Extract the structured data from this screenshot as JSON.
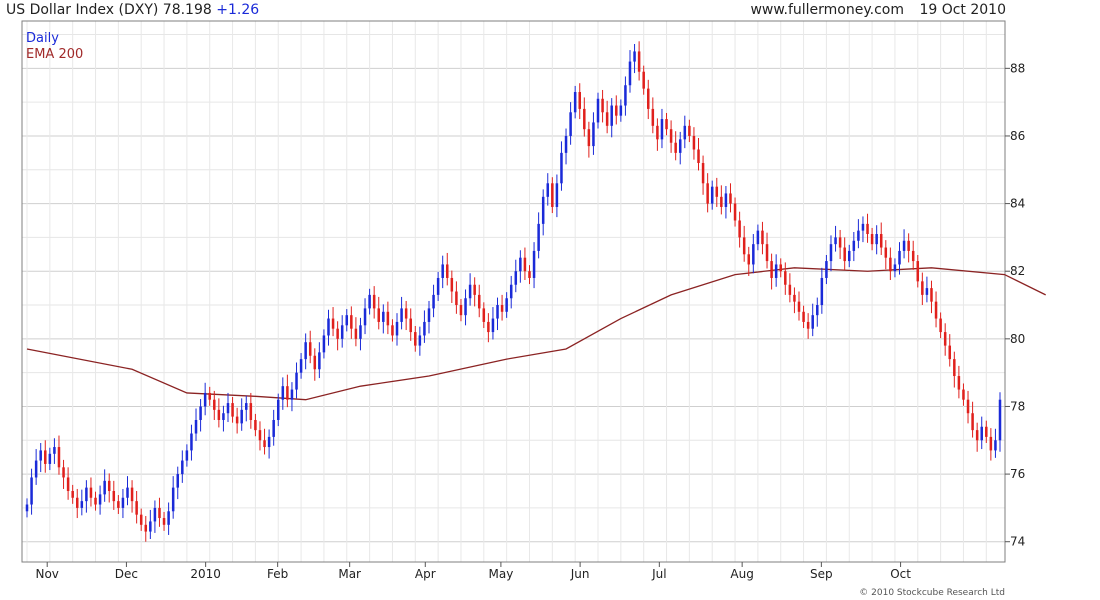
{
  "header": {
    "title": "US Dollar Index (DXY) 78.198",
    "change": "+1.26",
    "site": "www.fullermoney.com",
    "date": "19 Oct 2010"
  },
  "copyright": "© 2010 Stockcube Research Ltd",
  "colors": {
    "up": "#1a2ad8",
    "down": "#e0201c",
    "ema": "#8b2323",
    "grid": "#d8d8d8",
    "frame": "#7f7f7f"
  },
  "chart_data": {
    "type": "candlestick",
    "x_ticks": [
      "Nov",
      "Dec",
      "2010",
      "Feb",
      "Mar",
      "Apr",
      "May",
      "Jun",
      "Jul",
      "Aug",
      "Sep",
      "Oct"
    ],
    "y_ticks": [
      74,
      76,
      78,
      80,
      82,
      84,
      86,
      88
    ],
    "ylim": [
      73.4,
      89.4
    ],
    "legend_position": "top-left",
    "grid": true,
    "series": [
      {
        "name": "Daily",
        "style": "candles",
        "values": [
          75.1,
          75.9,
          76.4,
          76.7,
          76.3,
          76.6,
          76.8,
          76.2,
          75.9,
          75.5,
          75.3,
          75.0,
          75.2,
          75.6,
          75.3,
          75.1,
          75.4,
          75.8,
          75.5,
          75.2,
          75.0,
          75.3,
          75.6,
          75.2,
          74.8,
          74.5,
          74.3,
          74.6,
          75.0,
          74.7,
          74.5,
          74.9,
          75.6,
          76.0,
          76.4,
          76.7,
          77.2,
          77.6,
          78.0,
          78.4,
          78.2,
          77.9,
          77.6,
          77.8,
          78.1,
          77.7,
          77.5,
          77.9,
          78.1,
          77.6,
          77.3,
          77.0,
          76.8,
          77.1,
          77.6,
          78.2,
          78.6,
          78.2,
          78.5,
          79.0,
          79.4,
          79.9,
          79.5,
          79.1,
          79.6,
          80.1,
          80.6,
          80.3,
          80.0,
          80.4,
          80.7,
          80.3,
          80.0,
          80.4,
          80.9,
          81.3,
          80.9,
          80.5,
          80.8,
          80.4,
          80.1,
          80.5,
          80.9,
          80.6,
          80.2,
          79.8,
          80.1,
          80.5,
          80.9,
          81.3,
          81.8,
          82.2,
          81.8,
          81.4,
          81.0,
          80.7,
          81.2,
          81.6,
          81.3,
          80.9,
          80.5,
          80.2,
          80.6,
          81.0,
          80.8,
          81.2,
          81.6,
          82.0,
          82.4,
          82.0,
          81.8,
          82.6,
          83.4,
          84.2,
          84.6,
          83.9,
          84.6,
          85.5,
          86.0,
          86.7,
          87.3,
          86.8,
          86.2,
          85.7,
          86.4,
          87.1,
          86.7,
          86.3,
          86.9,
          86.6,
          86.9,
          87.5,
          88.2,
          88.5,
          87.9,
          87.4,
          86.8,
          86.3,
          85.9,
          86.5,
          86.2,
          85.8,
          85.5,
          85.9,
          86.3,
          86.0,
          85.6,
          85.2,
          84.6,
          84.0,
          84.5,
          84.2,
          83.9,
          84.3,
          84.0,
          83.5,
          83.0,
          82.5,
          82.2,
          82.8,
          83.2,
          82.8,
          82.3,
          81.8,
          82.2,
          82.0,
          81.6,
          81.3,
          81.1,
          80.8,
          80.5,
          80.3,
          80.7,
          81.0,
          81.8,
          82.3,
          82.8,
          83.0,
          82.7,
          82.3,
          82.6,
          82.9,
          83.2,
          83.4,
          83.1,
          82.8,
          83.1,
          82.7,
          82.4,
          82.0,
          82.2,
          82.6,
          82.9,
          82.6,
          82.3,
          81.7,
          81.3,
          81.5,
          81.1,
          80.6,
          80.2,
          79.8,
          79.4,
          78.9,
          78.5,
          78.2,
          77.8,
          77.3,
          77.0,
          77.4,
          77.1,
          76.7,
          77.0,
          78.2
        ],
        "label_value": 78.198
      },
      {
        "name": "EMA 200",
        "style": "line",
        "x_index": [
          0,
          23,
          35,
          50,
          61,
          73,
          88,
          105,
          118,
          130,
          141,
          155,
          168,
          184,
          198,
          214,
          223
        ],
        "values": [
          79.7,
          79.1,
          78.4,
          78.3,
          78.2,
          78.6,
          78.9,
          79.4,
          79.7,
          80.6,
          81.3,
          81.9,
          82.1,
          82.0,
          82.1,
          81.9,
          81.3
        ]
      }
    ]
  }
}
